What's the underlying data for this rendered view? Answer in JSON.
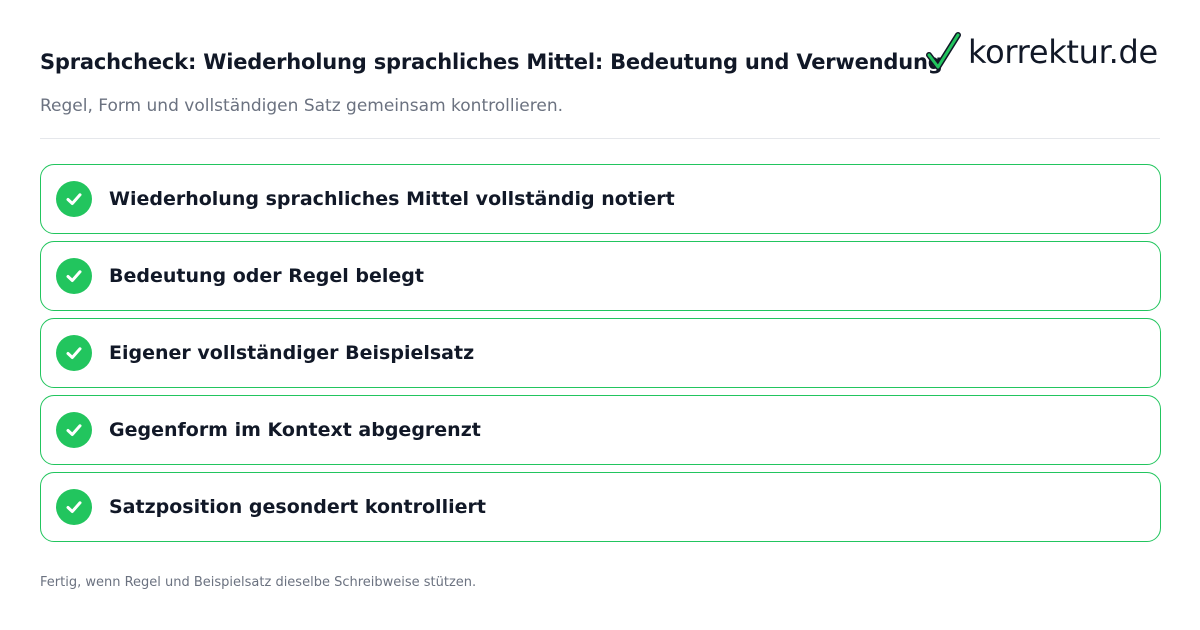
{
  "header": {
    "title": "Sprachcheck: Wiederholung sprachliches Mittel: Bedeutung und Verwendung",
    "subtitle": "Regel, Form und vollständigen Satz gemeinsam kontrollieren."
  },
  "logo": {
    "text": "korrektur.de",
    "icon": "checkmark-icon",
    "check_color": "#22c55e"
  },
  "checklist": {
    "accent_color": "#22c55e",
    "items": [
      {
        "label": "Wiederholung sprachliches Mittel vollständig notiert",
        "checked": true,
        "icon": "check-icon"
      },
      {
        "label": "Bedeutung oder Regel belegt",
        "checked": true,
        "icon": "check-icon"
      },
      {
        "label": "Eigener vollständiger Beispielsatz",
        "checked": true,
        "icon": "check-icon"
      },
      {
        "label": "Gegenform im Kontext abgegrenzt",
        "checked": true,
        "icon": "check-icon"
      },
      {
        "label": "Satzposition gesondert kontrolliert",
        "checked": true,
        "icon": "check-icon"
      }
    ]
  },
  "footer": {
    "text": "Fertig, wenn Regel und Beispielsatz dieselbe Schreibweise stützen."
  }
}
